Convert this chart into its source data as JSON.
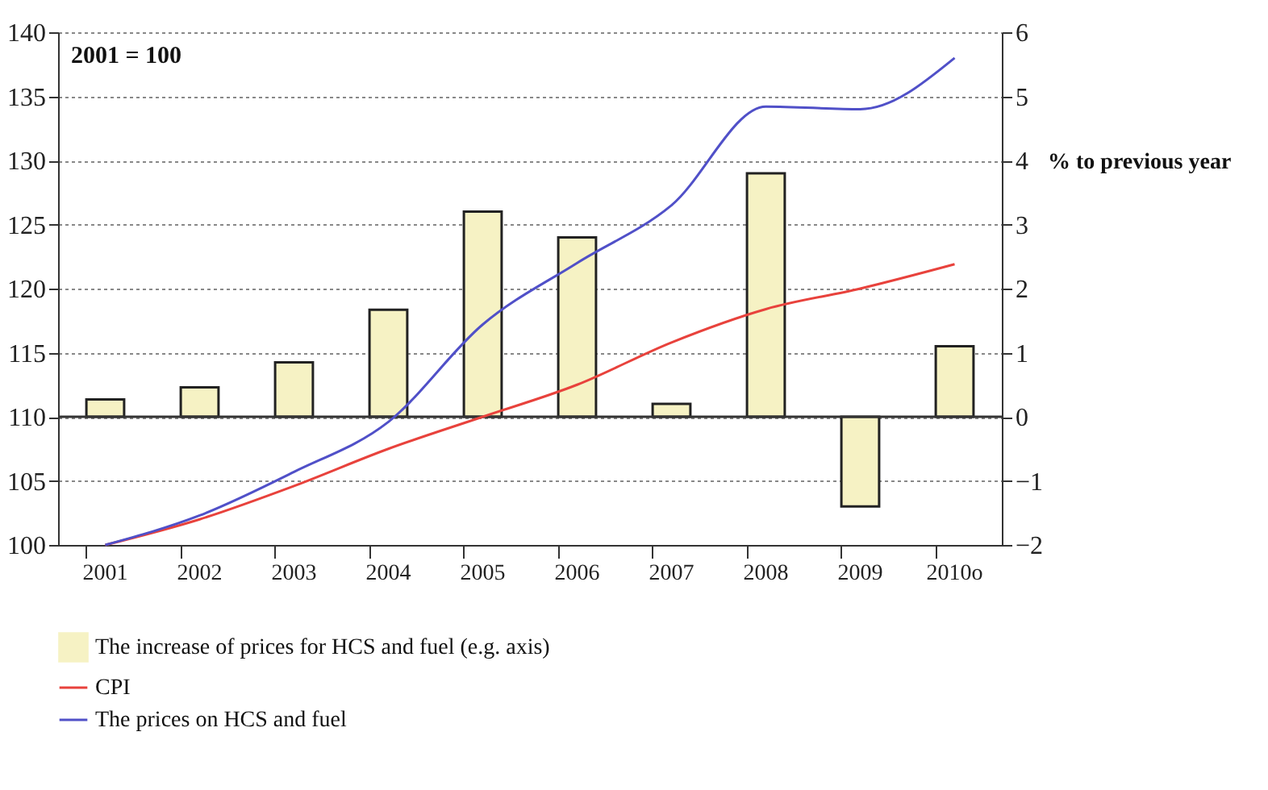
{
  "chart_data": {
    "type": "bar",
    "annotations": [
      "2001 = 100"
    ],
    "y2label": "% to previous year",
    "categories": [
      "2001",
      "2002",
      "2003",
      "2004",
      "2005",
      "2006",
      "2007",
      "2008",
      "2009",
      "2010o"
    ],
    "series": [
      {
        "name": "The increase of prices for HCS and fuel (e.g. axis)",
        "axis": "y2",
        "color": "#f6f2c4",
        "values": [
          0.27,
          0.46,
          0.85,
          1.67,
          3.2,
          2.8,
          0.2,
          3.8,
          -1.4,
          1.1
        ]
      },
      {
        "name": "CPI",
        "type": "line",
        "color": "#e8423c",
        "values": [
          100,
          102,
          104.6,
          107.5,
          110,
          112.5,
          115.8,
          118.4,
          120,
          121.9
        ]
      },
      {
        "name": "The prices on HCS and fuel",
        "type": "line",
        "color": "#5050c8",
        "values": [
          100,
          102.3,
          105.7,
          109.6,
          117.2,
          122,
          126.5,
          134.2,
          134,
          138
        ]
      }
    ],
    "ylim": [
      100,
      140
    ],
    "yticks": [
      100,
      105,
      110,
      115,
      120,
      125,
      130,
      135,
      140
    ],
    "y2lim": [
      -2,
      6
    ],
    "y2ticks": [
      -2,
      -1,
      0,
      1,
      2,
      3,
      4,
      5,
      6
    ],
    "ref_lines": [
      {
        "axis": "y2",
        "value": 0,
        "color": "#333333"
      }
    ],
    "grid": "y",
    "legend": "bottom"
  }
}
